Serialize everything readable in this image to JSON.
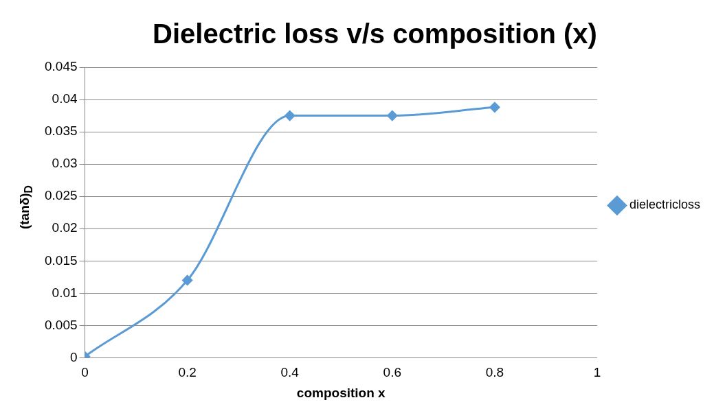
{
  "chart_data": {
    "type": "line",
    "title": "Dielectric loss v/s composition (x)",
    "xlabel": "composition x",
    "ylabel": "(tanδ)$_{D}$",
    "x": [
      0,
      0.2,
      0.4,
      0.6,
      0.8
    ],
    "series": [
      {
        "name": "dielectricloss",
        "color": "#5b9bd5",
        "values": [
          0.0002,
          0.012,
          0.0375,
          0.0375,
          0.0388
        ]
      }
    ],
    "xlim": [
      0,
      1
    ],
    "xticks": [
      0,
      0.2,
      0.4,
      0.6,
      0.8,
      1
    ],
    "ylim": [
      0,
      0.045
    ],
    "yticks": [
      0,
      0.005,
      0.01,
      0.015,
      0.02,
      0.025,
      0.03,
      0.035,
      0.04,
      0.045
    ],
    "grid": "y",
    "legend": "right",
    "marker": "diamond",
    "line_style": "solid"
  }
}
